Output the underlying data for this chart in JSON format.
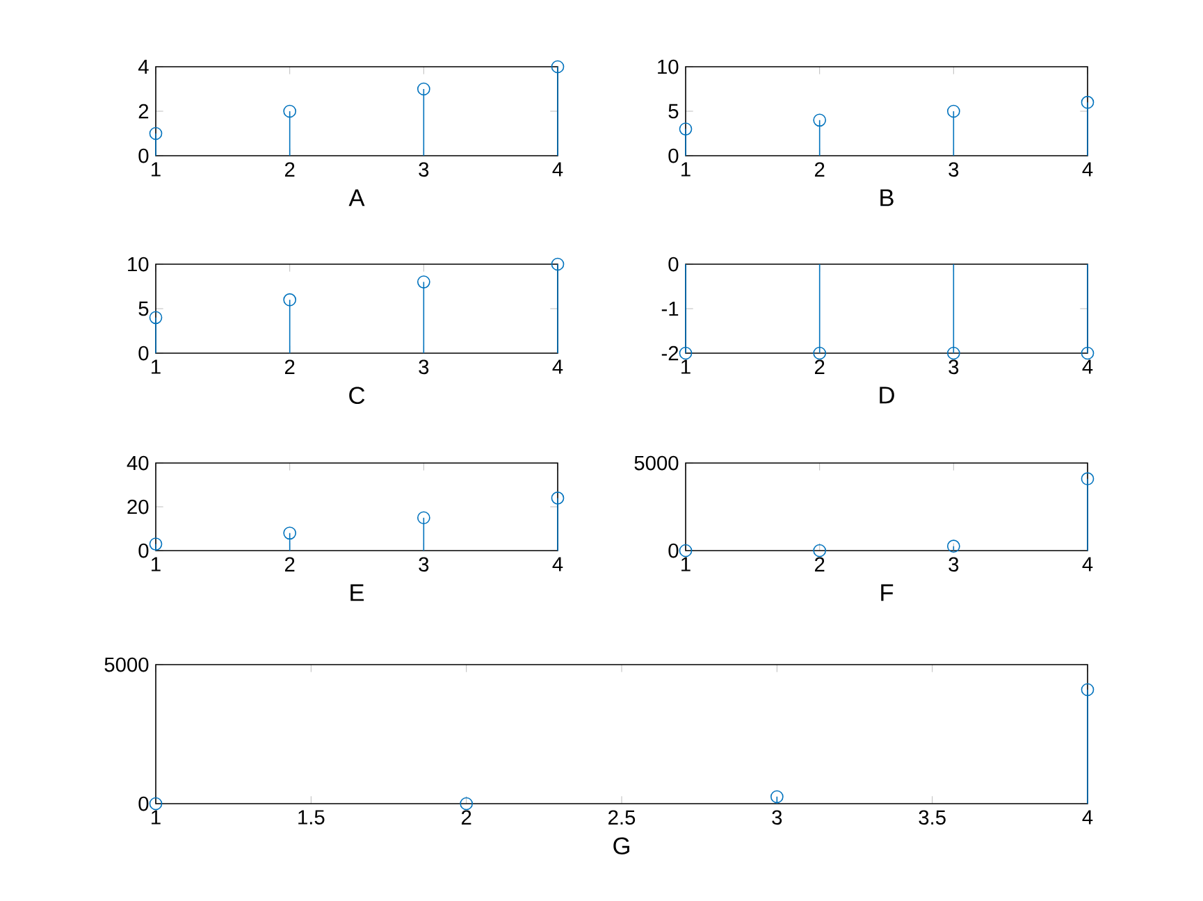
{
  "chart_data": [
    {
      "type": "lollipop",
      "xlabel": "A",
      "x": [
        1,
        2,
        3,
        4
      ],
      "values": [
        1,
        2,
        3,
        4
      ],
      "color": "#0072bd",
      "marker": "circle",
      "xlim": [
        1,
        4
      ],
      "xticks": [
        1,
        2,
        3,
        4
      ],
      "ylim": [
        0,
        4
      ],
      "yticks": [
        0,
        2,
        4
      ]
    },
    {
      "type": "lollipop",
      "xlabel": "B",
      "x": [
        1,
        2,
        3,
        4
      ],
      "values": [
        3,
        4,
        5,
        6
      ],
      "color": "#0072bd",
      "marker": "circle",
      "xlim": [
        1,
        4
      ],
      "xticks": [
        1,
        2,
        3,
        4
      ],
      "ylim": [
        0,
        10
      ],
      "yticks": [
        0,
        5,
        10
      ]
    },
    {
      "type": "lollipop",
      "xlabel": "C",
      "x": [
        1,
        2,
        3,
        4
      ],
      "values": [
        4,
        6,
        8,
        10
      ],
      "color": "#0072bd",
      "marker": "circle",
      "xlim": [
        1,
        4
      ],
      "xticks": [
        1,
        2,
        3,
        4
      ],
      "ylim": [
        0,
        10
      ],
      "yticks": [
        0,
        5,
        10
      ]
    },
    {
      "type": "lollipop",
      "xlabel": "D",
      "x": [
        1,
        2,
        3,
        4
      ],
      "values": [
        -2,
        -2,
        -2,
        -2
      ],
      "color": "#0072bd",
      "marker": "circle",
      "xlim": [
        1,
        4
      ],
      "xticks": [
        1,
        2,
        3,
        4
      ],
      "ylim": [
        -2,
        0
      ],
      "yticks": [
        -2,
        -1,
        0
      ]
    },
    {
      "type": "lollipop",
      "xlabel": "E",
      "x": [
        1,
        2,
        3,
        4
      ],
      "values": [
        3,
        8,
        15,
        24
      ],
      "color": "#0072bd",
      "marker": "circle",
      "xlim": [
        1,
        4
      ],
      "xticks": [
        1,
        2,
        3,
        4
      ],
      "ylim": [
        0,
        40
      ],
      "yticks": [
        0,
        20,
        40
      ]
    },
    {
      "type": "lollipop",
      "xlabel": "F",
      "x": [
        1,
        2,
        3,
        4
      ],
      "values": [
        0,
        0,
        250,
        4100
      ],
      "color": "#0072bd",
      "marker": "circle",
      "xlim": [
        1,
        4
      ],
      "xticks": [
        1,
        2,
        3,
        4
      ],
      "ylim": [
        0,
        5000
      ],
      "yticks": [
        0,
        5000
      ]
    },
    {
      "type": "lollipop",
      "xlabel": "G",
      "x": [
        1,
        2,
        3,
        4
      ],
      "values": [
        0,
        0,
        250,
        4100
      ],
      "color": "#0072bd",
      "marker": "circle",
      "xlim": [
        1,
        4
      ],
      "xticks": [
        1,
        1.5,
        2,
        2.5,
        3,
        3.5,
        4
      ],
      "ylim": [
        0,
        5000
      ],
      "yticks": [
        0,
        5000
      ]
    }
  ]
}
